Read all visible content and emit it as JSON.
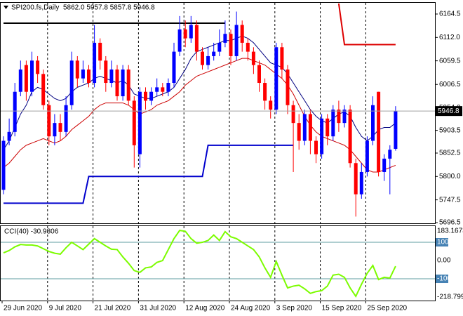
{
  "chart_data": [
    {
      "type": "candlestick",
      "title": "SPI200.fs,Daily",
      "info": "5862.0 5957.8 5857.8 5946.8",
      "categories": [
        "29 Jun 2020",
        null,
        null,
        null,
        null,
        null,
        null,
        null,
        "9 Jul 2020",
        null,
        null,
        null,
        null,
        null,
        null,
        null,
        "21 Jul 2020",
        null,
        null,
        null,
        null,
        null,
        null,
        null,
        "31 Jul 2020",
        null,
        null,
        null,
        null,
        null,
        null,
        null,
        "12 Aug 2020",
        null,
        null,
        null,
        null,
        null,
        null,
        null,
        "24 Aug 2020",
        null,
        null,
        null,
        null,
        null,
        null,
        null,
        "3 Sep 2020",
        null,
        null,
        null,
        null,
        null,
        null,
        null,
        "15 Sep 2020",
        null,
        null,
        null,
        null,
        null,
        null,
        null,
        "25 Sep 2020",
        null,
        null,
        null,
        null,
        null
      ],
      "open": [
        5770,
        5880,
        5900,
        5990,
        6050,
        5990,
        6060,
        6030,
        5960,
        5890,
        5920,
        5900,
        5960,
        6060,
        6020,
        6040,
        6010,
        6100,
        6060,
        6010,
        6040,
        5980,
        6040,
        5970,
        5850,
        5990,
        5970,
        5990,
        6000,
        5990,
        6010,
        6080,
        6130,
        6110,
        6140,
        6080,
        6050,
        6070,
        6080,
        6100,
        6120,
        6070,
        6140,
        6100,
        6080,
        6050,
        6010,
        5970,
        5950,
        6090,
        6040,
        5960,
        5920,
        5880,
        5940,
        5880,
        5850,
        5930,
        5890,
        5950,
        5920,
        5950,
        5830,
        5760,
        5810,
        5880,
        5990,
        5810,
        5840,
        5862
      ],
      "high": [
        5890,
        5930,
        6010,
        6060,
        6060,
        6080,
        6070,
        6040,
        5970,
        5940,
        5940,
        5980,
        6080,
        6070,
        6060,
        6050,
        6140,
        6110,
        6070,
        6060,
        6050,
        6050,
        6050,
        5980,
        6000,
        6000,
        6000,
        6020,
        6010,
        6020,
        6100,
        6160,
        6150,
        6160,
        6150,
        6090,
        6090,
        6100,
        6130,
        6150,
        6130,
        6170,
        6150,
        6110,
        6090,
        6060,
        6020,
        5980,
        6100,
        6100,
        6050,
        5970,
        5940,
        5950,
        5950,
        5890,
        5940,
        5940,
        5960,
        5970,
        5960,
        5960,
        5840,
        5830,
        5890,
        5980,
        5990,
        5850,
        5870,
        5957.8
      ],
      "low": [
        5760,
        5870,
        5890,
        5980,
        5970,
        5980,
        6010,
        5950,
        5870,
        5870,
        5880,
        5890,
        5950,
        6000,
        6010,
        6000,
        6000,
        6040,
        5990,
        6000,
        5970,
        5970,
        5960,
        5820,
        5820,
        5950,
        5960,
        5980,
        5980,
        5980,
        6000,
        6070,
        6090,
        6100,
        6060,
        6040,
        6040,
        6060,
        6070,
        6090,
        6050,
        6060,
        6080,
        6060,
        6030,
        5990,
        5950,
        5930,
        5940,
        6020,
        5940,
        5810,
        5860,
        5870,
        5850,
        5830,
        5840,
        5870,
        5880,
        5900,
        5910,
        5820,
        5710,
        5750,
        5800,
        5870,
        5800,
        5790,
        5760,
        5857.8
      ],
      "close": [
        5880,
        5900,
        5990,
        6040,
        5990,
        6060,
        6030,
        5960,
        5890,
        5920,
        5900,
        5960,
        6060,
        6020,
        6040,
        6010,
        6100,
        6060,
        6010,
        6040,
        5980,
        6040,
        5970,
        5870,
        5990,
        5970,
        5990,
        6000,
        5990,
        6010,
        6080,
        6130,
        6110,
        6140,
        6080,
        6050,
        6070,
        6080,
        6100,
        6120,
        6070,
        6140,
        6100,
        6080,
        6050,
        6010,
        5970,
        5950,
        6090,
        6040,
        5960,
        5920,
        5880,
        5940,
        5880,
        5850,
        5930,
        5890,
        5950,
        5920,
        5950,
        5830,
        5760,
        5810,
        5880,
        5960,
        5810,
        5840,
        5860,
        5946.8
      ],
      "up_color": "#0000ff",
      "down_color": "#ff0000",
      "series": [
        {
          "color": "#000080",
          "width": 1,
          "values": [
            5860,
            5880,
            5910,
            5940,
            5960,
            5990,
            6000,
            5995,
            5985,
            5975,
            5970,
            5975,
            5990,
            6000,
            6005,
            6010,
            6020,
            6025,
            6020,
            6015,
            6010,
            6015,
            6005,
            5985,
            5980,
            5975,
            5975,
            5980,
            5985,
            5990,
            6000,
            6020,
            6040,
            6065,
            6080,
            6085,
            6090,
            6095,
            6100,
            6105,
            6105,
            6110,
            6115,
            6110,
            6100,
            6085,
            6070,
            6055,
            6050,
            6045,
            6030,
            6010,
            5990,
            5970,
            5950,
            5935,
            5925,
            5920,
            5930,
            5940,
            5945,
            5935,
            5910,
            5890,
            5880,
            5890,
            5905,
            5910,
            5910,
            5920
          ]
        },
        {
          "color": "#cc0000",
          "width": 1,
          "values": [
            5820,
            5830,
            5845,
            5860,
            5870,
            5875,
            5880,
            5885,
            5880,
            5875,
            5880,
            5890,
            5905,
            5915,
            5925,
            5935,
            5950,
            5960,
            5965,
            5965,
            5965,
            5965,
            5960,
            5950,
            5940,
            5945,
            5950,
            5960,
            5965,
            5970,
            5980,
            5990,
            6005,
            6015,
            6025,
            6030,
            6035,
            6040,
            6045,
            6050,
            6055,
            6060,
            6065,
            6065,
            6060,
            6055,
            6050,
            6040,
            6030,
            6020,
            6005,
            5985,
            5960,
            5935,
            5915,
            5900,
            5890,
            5885,
            5880,
            5875,
            5870,
            5860,
            5845,
            5830,
            5815,
            5810,
            5810,
            5815,
            5820,
            5825
          ]
        },
        {
          "color": "#0000cd",
          "width": 2,
          "values": [
            5740,
            5740,
            5740,
            5740,
            5740,
            5740,
            5740,
            5740,
            5740,
            5740,
            5740,
            5740,
            5740,
            5740,
            5740,
            5800,
            5800,
            5800,
            5800,
            5800,
            5800,
            5800,
            5800,
            5800,
            5800,
            5800,
            5800,
            5800,
            5800,
            5800,
            5800,
            5800,
            5800,
            5800,
            5800,
            5800,
            5870,
            5870,
            5870,
            5870,
            5870,
            5870,
            5870,
            5870,
            5870,
            5870,
            5870,
            5870,
            5870,
            5870,
            5870,
            5870,
            null,
            null,
            null,
            null,
            null,
            null,
            null,
            null,
            null,
            null,
            null,
            null,
            null,
            null,
            null,
            null,
            null,
            null
          ]
        },
        {
          "color": "#000000",
          "width": 2,
          "values": [
            6144,
            6144,
            6144,
            6144,
            6144,
            6144,
            6144,
            6144,
            6144,
            6144,
            6144,
            6144,
            6144,
            6144,
            6144,
            6144,
            6144,
            6144,
            6144,
            6144,
            6144,
            6144,
            6144,
            6144,
            6144,
            6144,
            6144,
            6144,
            6144,
            6144,
            6144,
            6144,
            6144,
            6144,
            6144,
            6144,
            6144,
            6144,
            6144,
            6144,
            null,
            null,
            null,
            null,
            null,
            null,
            null,
            null,
            null,
            null,
            null,
            null,
            null,
            null,
            null,
            null,
            null,
            null,
            null,
            null,
            null,
            null,
            null,
            null,
            null,
            null,
            null,
            null,
            null,
            null
          ]
        },
        {
          "color": "#dd0000",
          "width": 2,
          "values": [
            null,
            null,
            null,
            null,
            null,
            null,
            null,
            null,
            null,
            null,
            null,
            null,
            null,
            null,
            null,
            null,
            null,
            null,
            null,
            null,
            null,
            null,
            null,
            null,
            null,
            null,
            null,
            null,
            null,
            null,
            null,
            null,
            null,
            null,
            null,
            null,
            null,
            null,
            null,
            null,
            null,
            null,
            null,
            null,
            null,
            null,
            null,
            null,
            null,
            null,
            null,
            null,
            null,
            null,
            null,
            null,
            null,
            null,
            null,
            6188,
            6096,
            6096,
            6096,
            6096,
            6096,
            6096,
            6096,
            6096,
            6096,
            6096
          ]
        }
      ],
      "ylim": [
        5694.9,
        6188.1
      ],
      "yticks": [
        6164.5,
        {
          "value": 6112,
          "label": "6112.0"
        },
        6059.5,
        6006.5,
        {
          "value": 5954,
          "label": "5954.0"
        },
        5903.5,
        5852.5,
        {
          "value": 5800,
          "label": "5800.0"
        },
        5747.5,
        5696.5
      ],
      "price_line_color": "#a0a0a0"
    },
    {
      "type": "line",
      "title": "CCI(40) -30.9806",
      "color": "#7cfc00",
      "values": [
        42,
        55,
        75,
        88,
        85,
        85,
        80,
        65,
        50,
        40,
        35,
        70,
        100,
        80,
        60,
        90,
        120,
        100,
        80,
        62,
        60,
        20,
        -15,
        -55,
        -65,
        -40,
        -35,
        -10,
        0,
        60,
        120,
        165,
        160,
        120,
        95,
        100,
        110,
        140,
        110,
        158,
        130,
        120,
        100,
        80,
        60,
        20,
        -40,
        -92,
        -5,
        -80,
        -150,
        -140,
        -135,
        -155,
        -180,
        -170,
        -165,
        -140,
        -80,
        -75,
        -92,
        -150,
        -196,
        -130,
        -70,
        -27,
        -104,
        -92,
        -96,
        -30.9806
      ],
      "ylim": [
        -218.799,
        183.1673
      ],
      "yticks": [
        100,
        {
          "value": 0,
          "label": "0.00"
        },
        -100
      ],
      "level_color": "#5f9ea0",
      "level_box_color": "#4682b4"
    }
  ]
}
